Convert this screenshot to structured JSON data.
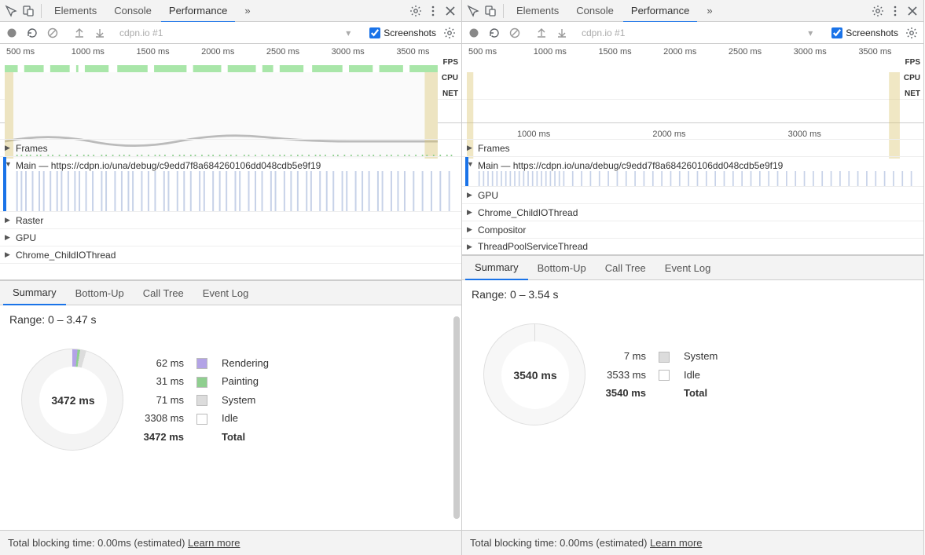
{
  "topTabs": {
    "items": [
      "Elements",
      "Console",
      "Performance"
    ],
    "activeIndex": 2,
    "moreGlyph": "»"
  },
  "toolbar": {
    "site": "cdpn.io #1",
    "screenshotsLabel": "Screenshots",
    "screenshotsChecked": true,
    "dropdownGlyph": "▾"
  },
  "overview": {
    "ticks": [
      "500 ms",
      "1000 ms",
      "1500 ms",
      "2000 ms",
      "2500 ms",
      "3000 ms",
      "3500 ms"
    ],
    "laneLabels": {
      "fps": "FPS",
      "cpu": "CPU",
      "net": "NET"
    },
    "colors": {
      "fpsFill": "#a9e6a9",
      "fpsStroke": "#6bbf6b",
      "cpuLine": "#cfcfcf",
      "hatch": "#d9c36b"
    }
  },
  "tracksLeft": {
    "ruler": [
      "500 ms",
      "1000 ms",
      "1500 ms",
      "2000 ms",
      "2500 ms",
      "3000 ms",
      "3500 ms"
    ],
    "frames": "Frames",
    "mainPrefix": "Main — ",
    "mainUrl": "https://cdpn.io/una/debug/c9edd7f8a684260106dd048cdb5e9f19",
    "raster": "Raster",
    "gpu": "GPU",
    "childIO": "Chrome_ChildIOThread",
    "mainColors": {
      "taskBlue": "#c7d2e8",
      "taskGreen": "#8fcf8f",
      "bg": "#ffffff"
    }
  },
  "tracksRight": {
    "ruler": [
      "1000 ms",
      "2000 ms",
      "3000 ms"
    ],
    "frames": "Frames",
    "mainPrefix": "Main — ",
    "mainUrl": "https://cdpn.io/una/debug/c9edd7f8a684260106dd048cdb5e9f19",
    "gpu": "GPU",
    "childIO": "Chrome_ChildIOThread",
    "compositor": "Compositor",
    "threadPool": "ThreadPoolServiceThread"
  },
  "bottomTabs": {
    "items": [
      "Summary",
      "Bottom-Up",
      "Call Tree",
      "Event Log"
    ],
    "activeIndex": 0
  },
  "summaryLeft": {
    "range": "Range: 0 – 3.47 s",
    "centerValue": "3472 ms",
    "rows": [
      {
        "value": "62 ms",
        "label": "Rendering",
        "color": "#b3a3e6"
      },
      {
        "value": "31 ms",
        "label": "Painting",
        "color": "#8fcf8f"
      },
      {
        "value": "71 ms",
        "label": "System",
        "color": "#dcdcdc"
      },
      {
        "value": "3308 ms",
        "label": "Idle",
        "color": "#ffffff"
      }
    ],
    "total": {
      "value": "3472 ms",
      "label": "Total"
    },
    "donut": {
      "sliceColors": [
        "#b3a3e6",
        "#8fcf8f",
        "#dcdcdc",
        "#f4f4f4"
      ],
      "sliceDegrees": [
        6,
        3,
        7,
        344
      ],
      "ringBorder": "#e0e0e0"
    }
  },
  "summaryRight": {
    "range": "Range: 0 – 3.54 s",
    "centerValue": "3540 ms",
    "rows": [
      {
        "value": "7 ms",
        "label": "System",
        "color": "#dcdcdc"
      },
      {
        "value": "3533 ms",
        "label": "Idle",
        "color": "#ffffff"
      }
    ],
    "total": {
      "value": "3540 ms",
      "label": "Total"
    },
    "donut": {
      "sliceColors": [
        "#dcdcdc",
        "#f7f7f7"
      ],
      "sliceDegrees": [
        1,
        359
      ],
      "ringBorder": "#e0e0e0"
    }
  },
  "footer": {
    "text": "Total blocking time: 0.00ms (estimated) ",
    "link": "Learn more"
  },
  "icons": {
    "inspect": "inspect",
    "device": "device",
    "gear": "gear",
    "menu": "menu",
    "close": "close",
    "record": "record",
    "reload": "reload",
    "nosign": "nosign",
    "upload": "upload",
    "download": "download"
  }
}
